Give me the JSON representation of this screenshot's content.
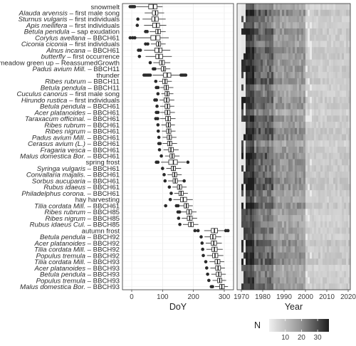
{
  "chart_data": [
    {
      "type": "boxplot",
      "xlabel": "DoY",
      "xlim": [
        -30,
        330
      ],
      "xticks": [
        0,
        100,
        200,
        300
      ],
      "categories": [
        {
          "species": "",
          "phase": "snowmelt",
          "q1": 55,
          "median": 70,
          "q3": 82,
          "lo": 15,
          "hi": 100,
          "out": [
            -5,
            0,
            3,
            6,
            9
          ]
        },
        {
          "species": "Alauda arvensis",
          "phase": " – first male song",
          "q1": 67,
          "median": 77,
          "q3": 85,
          "lo": 42,
          "hi": 105,
          "out": []
        },
        {
          "species": "Sturnus vulgaris",
          "phase": " – first individuals",
          "q1": 65,
          "median": 75,
          "q3": 86,
          "lo": 35,
          "hi": 110,
          "out": [
            20
          ]
        },
        {
          "species": "Apis mellifera",
          "phase": " – first individuals",
          "q1": 68,
          "median": 80,
          "q3": 90,
          "lo": 40,
          "hi": 112,
          "out": [
            18
          ]
        },
        {
          "species": "Betula pendula",
          "phase": " – sap exudation",
          "q1": 78,
          "median": 85,
          "q3": 93,
          "lo": 58,
          "hi": 110,
          "out": [
            45,
            50
          ]
        },
        {
          "species": "Corylus avellana",
          "phase": " – BBCH61",
          "q1": 62,
          "median": 78,
          "q3": 92,
          "lo": 15,
          "hi": 120,
          "out": [
            -5,
            3,
            10
          ]
        },
        {
          "species": "Ciconia ciconia",
          "phase": " – first individuals",
          "q1": 80,
          "median": 87,
          "q3": 94,
          "lo": 62,
          "hi": 110,
          "out": [
            45,
            52
          ]
        },
        {
          "species": "Alnus incana",
          "phase": " – BBCH61",
          "q1": 75,
          "median": 88,
          "q3": 98,
          "lo": 40,
          "hi": 125,
          "out": [
            22,
            28
          ]
        },
        {
          "species": "butterfly",
          "phase": " – first occurrence",
          "q1": 78,
          "median": 88,
          "q3": 100,
          "lo": 45,
          "hi": 130,
          "out": [
            25
          ]
        },
        {
          "species": "",
          "phase": "meadow green up – ReassumedGrowth",
          "q1": 90,
          "median": 98,
          "q3": 106,
          "lo": 70,
          "hi": 125,
          "out": [
            60
          ]
        },
        {
          "species": "Padus avium Mill.",
          "phase": " – BBCH11",
          "q1": 96,
          "median": 104,
          "q3": 110,
          "lo": 82,
          "hi": 125,
          "out": [
            70,
            75
          ]
        },
        {
          "species": "",
          "phase": "thunder",
          "q1": 103,
          "median": 115,
          "q3": 127,
          "lo": 68,
          "hi": 158,
          "out": [
            40,
            45,
            50,
            55,
            60,
            160,
            165,
            170,
            175
          ]
        },
        {
          "species": "Ribes rubrum",
          "phase": " – BBCH11",
          "q1": 100,
          "median": 108,
          "q3": 115,
          "lo": 88,
          "hi": 130,
          "out": [
            78
          ]
        },
        {
          "species": "Betula pendula",
          "phase": " – BBCH11",
          "q1": 105,
          "median": 112,
          "q3": 119,
          "lo": 92,
          "hi": 135,
          "out": [
            80,
            85
          ]
        },
        {
          "species": "Cuculus canorus",
          "phase": " – first male song",
          "q1": 108,
          "median": 115,
          "q3": 121,
          "lo": 96,
          "hi": 135,
          "out": [
            85
          ]
        },
        {
          "species": "Hirundo rustica",
          "phase": " – first individuals",
          "q1": 105,
          "median": 113,
          "q3": 121,
          "lo": 90,
          "hi": 138,
          "out": [
            75,
            80
          ]
        },
        {
          "species": "Betula pendula",
          "phase": " – BBCH61",
          "q1": 108,
          "median": 116,
          "q3": 123,
          "lo": 92,
          "hi": 138,
          "out": [
            82
          ]
        },
        {
          "species": "Acer platanoides",
          "phase": " – BBCH61",
          "q1": 108,
          "median": 116,
          "q3": 124,
          "lo": 92,
          "hi": 140,
          "out": [
            80,
            85
          ]
        },
        {
          "species": "Taraxacum officinal.",
          "phase": " – BBCH61",
          "q1": 110,
          "median": 118,
          "q3": 126,
          "lo": 92,
          "hi": 142,
          "out": [
            78,
            84
          ]
        },
        {
          "species": "Ribes rubrum",
          "phase": " – BBCH61",
          "q1": 112,
          "median": 119,
          "q3": 126,
          "lo": 96,
          "hi": 140,
          "out": [
            85
          ]
        },
        {
          "species": "Ribes nigrum",
          "phase": " – BBCH61",
          "q1": 113,
          "median": 120,
          "q3": 127,
          "lo": 98,
          "hi": 142,
          "out": [
            86
          ]
        },
        {
          "species": "Padus avium Mill.",
          "phase": " – BBCH61",
          "q1": 115,
          "median": 122,
          "q3": 129,
          "lo": 100,
          "hi": 145,
          "out": [
            88
          ]
        },
        {
          "species": "Cerasus avium (L.)",
          "phase": " – BBCH61",
          "q1": 116,
          "median": 123,
          "q3": 130,
          "lo": 100,
          "hi": 147,
          "out": [
            88,
            92
          ]
        },
        {
          "species": "Fragaria vesca",
          "phase": " – BBCH61",
          "q1": 120,
          "median": 127,
          "q3": 135,
          "lo": 103,
          "hi": 152,
          "out": [
            90
          ]
        },
        {
          "species": "Malus domestica Bor.",
          "phase": " – BBCH61",
          "q1": 124,
          "median": 131,
          "q3": 138,
          "lo": 108,
          "hi": 155,
          "out": [
            96
          ]
        },
        {
          "species": "",
          "phase": "spring frost",
          "q1": 120,
          "median": 135,
          "q3": 148,
          "lo": 95,
          "hi": 175,
          "out": [
            80,
            85,
            182
          ]
        },
        {
          "species": "Syringa vulgaris",
          "phase": " – BBCH61",
          "q1": 128,
          "median": 135,
          "q3": 142,
          "lo": 112,
          "hi": 160,
          "out": [
            100
          ]
        },
        {
          "species": "Convallaria majalis.",
          "phase": " – BBCH61",
          "q1": 132,
          "median": 139,
          "q3": 146,
          "lo": 116,
          "hi": 162,
          "out": [
            105
          ]
        },
        {
          "species": "Sorbus aucuparia",
          "phase": " – BBCH61",
          "q1": 134,
          "median": 141,
          "q3": 148,
          "lo": 118,
          "hi": 165,
          "out": [
            108,
            170
          ]
        },
        {
          "species": "Rubus idaeus",
          "phase": " – BBCH61",
          "q1": 148,
          "median": 155,
          "q3": 162,
          "lo": 132,
          "hi": 178,
          "out": [
            122
          ]
        },
        {
          "species": "Philadelphus corona.",
          "phase": " – BBCH61",
          "q1": 153,
          "median": 160,
          "q3": 167,
          "lo": 138,
          "hi": 182,
          "out": [
            128
          ]
        },
        {
          "species": "",
          "phase": "hay harvesting",
          "q1": 158,
          "median": 167,
          "q3": 178,
          "lo": 135,
          "hi": 198,
          "out": [
            125
          ]
        },
        {
          "species": "Tilia cordata Mill.",
          "phase": " – BBCH61",
          "q1": 170,
          "median": 177,
          "q3": 184,
          "lo": 155,
          "hi": 198,
          "out": [
            110,
            145,
            150
          ]
        },
        {
          "species": "Ribes rubrum",
          "phase": " – BBCH85",
          "q1": 178,
          "median": 186,
          "q3": 194,
          "lo": 160,
          "hi": 210,
          "out": [
            150,
            155
          ]
        },
        {
          "species": "Ribes nigrum",
          "phase": " – BBCH85",
          "q1": 180,
          "median": 188,
          "q3": 196,
          "lo": 162,
          "hi": 212,
          "out": [
            152
          ]
        },
        {
          "species": "Rubus idaeus Cul.",
          "phase": " – BBCH85",
          "q1": 184,
          "median": 192,
          "q3": 200,
          "lo": 166,
          "hi": 216,
          "out": [
            156
          ]
        },
        {
          "species": "",
          "phase": "autumn frost",
          "q1": 258,
          "median": 268,
          "q3": 278,
          "lo": 235,
          "hi": 300,
          "out": [
            205,
            215,
            305,
            312
          ]
        },
        {
          "species": "Betula pendula",
          "phase": " – BBCH92",
          "q1": 255,
          "median": 263,
          "q3": 272,
          "lo": 236,
          "hi": 290,
          "out": [
            225
          ]
        },
        {
          "species": "Acer platanoides",
          "phase": " – BBCH92",
          "q1": 258,
          "median": 266,
          "q3": 275,
          "lo": 240,
          "hi": 292,
          "out": [
            228
          ]
        },
        {
          "species": "Tilia cordata Mill.",
          "phase": " – BBCH92",
          "q1": 260,
          "median": 268,
          "q3": 277,
          "lo": 242,
          "hi": 295,
          "out": [
            230
          ]
        },
        {
          "species": "Populus tremula",
          "phase": " – BBCH92",
          "q1": 262,
          "median": 270,
          "q3": 279,
          "lo": 244,
          "hi": 297,
          "out": [
            232
          ]
        },
        {
          "species": "Tilia cordata Mill.",
          "phase": " – BBCH93",
          "q1": 270,
          "median": 278,
          "q3": 286,
          "lo": 252,
          "hi": 300,
          "out": [
            240
          ]
        },
        {
          "species": "Acer platanoides",
          "phase": " – BBCH93",
          "q1": 272,
          "median": 280,
          "q3": 288,
          "lo": 255,
          "hi": 302,
          "out": [
            243
          ]
        },
        {
          "species": "Betula pendula",
          "phase": " – BBCH93",
          "q1": 274,
          "median": 282,
          "q3": 290,
          "lo": 258,
          "hi": 305,
          "out": [
            246
          ]
        },
        {
          "species": "Populus tremula",
          "phase": " – BBCH93",
          "q1": 278,
          "median": 285,
          "q3": 292,
          "lo": 262,
          "hi": 306,
          "out": [
            250
          ]
        },
        {
          "species": "Malus domestica Bor.",
          "phase": " – BBCH93",
          "q1": 285,
          "median": 292,
          "q3": 300,
          "lo": 270,
          "hi": 312,
          "out": [
            258,
            262
          ]
        }
      ]
    },
    {
      "type": "heatmap",
      "xlabel": "Year",
      "xlim": [
        1968,
        2021
      ],
      "xticks": [
        1970,
        1980,
        1990,
        2000,
        2010,
        2020
      ],
      "rows": 46,
      "legend": {
        "title": "N",
        "range": [
          0,
          37
        ],
        "ticks": [
          10,
          20,
          30
        ],
        "placement": "bottom"
      }
    }
  ]
}
